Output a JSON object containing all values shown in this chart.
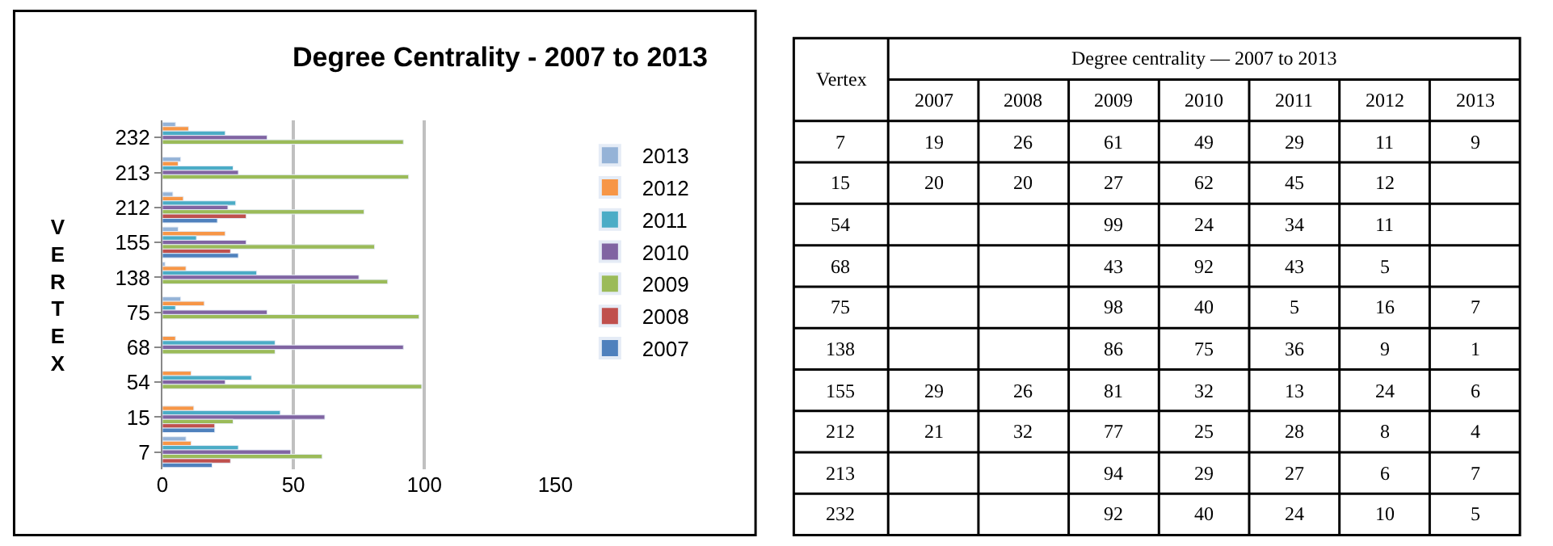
{
  "chart_data": [
    {
      "type": "bar",
      "title": "Degree Centrality - 2007 to 2013",
      "ylabel": "VERTEX",
      "orientation": "horizontal",
      "categories": [
        "232",
        "213",
        "212",
        "155",
        "138",
        "75",
        "68",
        "54",
        "15",
        "7"
      ],
      "series": [
        {
          "name": "2013",
          "color": "#95b3d7",
          "values": [
            5,
            7,
            4,
            6,
            1,
            7,
            null,
            null,
            null,
            9
          ]
        },
        {
          "name": "2012",
          "color": "#f79646",
          "values": [
            10,
            6,
            8,
            24,
            9,
            16,
            5,
            11,
            12,
            11
          ]
        },
        {
          "name": "2011",
          "color": "#4bacc6",
          "values": [
            24,
            27,
            28,
            13,
            36,
            5,
            43,
            34,
            45,
            29
          ]
        },
        {
          "name": "2010",
          "color": "#8064a2",
          "values": [
            40,
            29,
            25,
            32,
            75,
            40,
            92,
            24,
            62,
            49
          ]
        },
        {
          "name": "2009",
          "color": "#9bbb59",
          "values": [
            92,
            94,
            77,
            81,
            86,
            98,
            43,
            99,
            27,
            61
          ]
        },
        {
          "name": "2008",
          "color": "#c0504d",
          "values": [
            null,
            null,
            32,
            26,
            null,
            null,
            null,
            null,
            20,
            26
          ]
        },
        {
          "name": "2007",
          "color": "#4f81bd",
          "values": [
            null,
            null,
            21,
            29,
            null,
            null,
            null,
            null,
            20,
            19
          ]
        }
      ],
      "xlim": [
        0,
        150
      ],
      "xticks": [
        0,
        50,
        100,
        150
      ],
      "grid": "x",
      "legend": "right"
    },
    {
      "type": "heatmap",
      "title": "Degree centrality — 2007 to 2013",
      "ylabel": "Vertex",
      "categories": [
        "2007",
        "2008",
        "2009",
        "2010",
        "2011",
        "2012",
        "2013"
      ],
      "y_categories": [
        "7",
        "15",
        "54",
        "68",
        "75",
        "138",
        "155",
        "212",
        "213",
        "232"
      ],
      "cells": [
        [
          19,
          26,
          61,
          49,
          29,
          11,
          9
        ],
        [
          20,
          20,
          27,
          62,
          45,
          12,
          null
        ],
        [
          null,
          null,
          99,
          24,
          34,
          11,
          null
        ],
        [
          null,
          null,
          43,
          92,
          43,
          5,
          null
        ],
        [
          null,
          null,
          98,
          40,
          5,
          16,
          7
        ],
        [
          null,
          null,
          86,
          75,
          36,
          9,
          1
        ],
        [
          29,
          26,
          81,
          32,
          13,
          24,
          6
        ],
        [
          21,
          32,
          77,
          25,
          28,
          8,
          4
        ],
        [
          null,
          null,
          94,
          29,
          27,
          6,
          7
        ],
        [
          null,
          null,
          92,
          40,
          24,
          10,
          5
        ]
      ],
      "data_labels": true
    }
  ]
}
